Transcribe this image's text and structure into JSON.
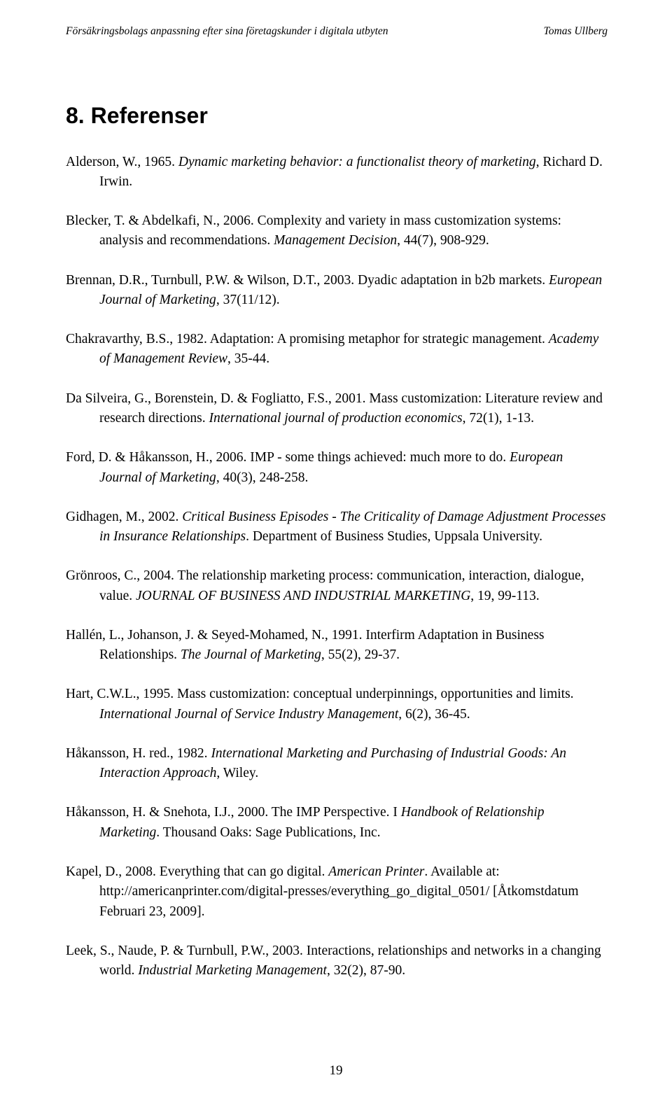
{
  "header": {
    "left": "Försäkringsbolags anpassning efter sina företagskunder i digitala utbyten",
    "right": "Tomas Ullberg"
  },
  "heading": "8. Referenser",
  "references": [
    {
      "plain1": "Alderson, W., 1965. ",
      "italic1": "Dynamic marketing behavior: a functionalist theory of marketing",
      "plain2": ", Richard D. Irwin."
    },
    {
      "plain1": "Blecker, T. & Abdelkafi, N., 2006. Complexity and variety in mass customization systems: analysis and recommendations. ",
      "italic1": "Management Decision",
      "plain2": ", 44(7), 908-929."
    },
    {
      "plain1": "Brennan, D.R., Turnbull, P.W. & Wilson, D.T., 2003. Dyadic adaptation in b2b markets. ",
      "italic1": "European Journal of Marketing",
      "plain2": ", 37(11/12)."
    },
    {
      "plain1": "Chakravarthy, B.S., 1982. Adaptation: A promising metaphor for strategic management. ",
      "italic1": "Academy of Management Review",
      "plain2": ", 35-44."
    },
    {
      "plain1": "Da Silveira, G., Borenstein, D. & Fogliatto, F.S., 2001. Mass customization: Literature review and research directions. ",
      "italic1": "International journal of production economics",
      "plain2": ", 72(1), 1-13."
    },
    {
      "plain1": "Ford, D. & Håkansson, H., 2006. IMP - some things achieved: much more to do. ",
      "italic1": "European Journal of Marketing",
      "plain2": ", 40(3), 248-258."
    },
    {
      "plain1": "Gidhagen, M., 2002. ",
      "italic1": "Critical Business Episodes - The Criticality of Damage Adjustment Processes in Insurance Relationships",
      "plain2": ". Department of Business Studies, Uppsala University."
    },
    {
      "plain1": "Grönroos, C., 2004. The relationship marketing process: communication, interaction, dialogue, value. ",
      "italic1": "JOURNAL OF BUSINESS AND INDUSTRIAL MARKETING",
      "plain2": ", 19, 99-113."
    },
    {
      "plain1": "Hallén, L., Johanson, J. & Seyed-Mohamed, N., 1991. Interfirm Adaptation in Business Relationships. ",
      "italic1": "The Journal of Marketing",
      "plain2": ", 55(2), 29-37."
    },
    {
      "plain1": "Hart, C.W.L., 1995. Mass customization: conceptual underpinnings, opportunities and limits. ",
      "italic1": "International Journal of Service Industry Management",
      "plain2": ", 6(2), 36-45."
    },
    {
      "plain1": "Håkansson, H. red., 1982. ",
      "italic1": "International Marketing and Purchasing of Industrial Goods: An Interaction Approach",
      "plain2": ", Wiley."
    },
    {
      "plain1": "Håkansson, H. & Snehota, I.J., 2000. The IMP Perspective. I ",
      "italic1": "Handbook of Relationship Marketing",
      "plain2": ".  Thousand Oaks: Sage Publications, Inc."
    },
    {
      "plain1": "Kapel, D., 2008. Everything that can go digital. ",
      "italic1": "American Printer",
      "plain2": ". Available at: http://americanprinter.com/digital-presses/everything_go_digital_0501/ [Åtkomstdatum Februari 23, 2009]."
    },
    {
      "plain1": "Leek, S., Naude, P. & Turnbull, P.W., 2003. Interactions, relationships and networks in a changing world. ",
      "italic1": "Industrial Marketing Management",
      "plain2": ", 32(2), 87-90."
    }
  ],
  "page_number": "19"
}
